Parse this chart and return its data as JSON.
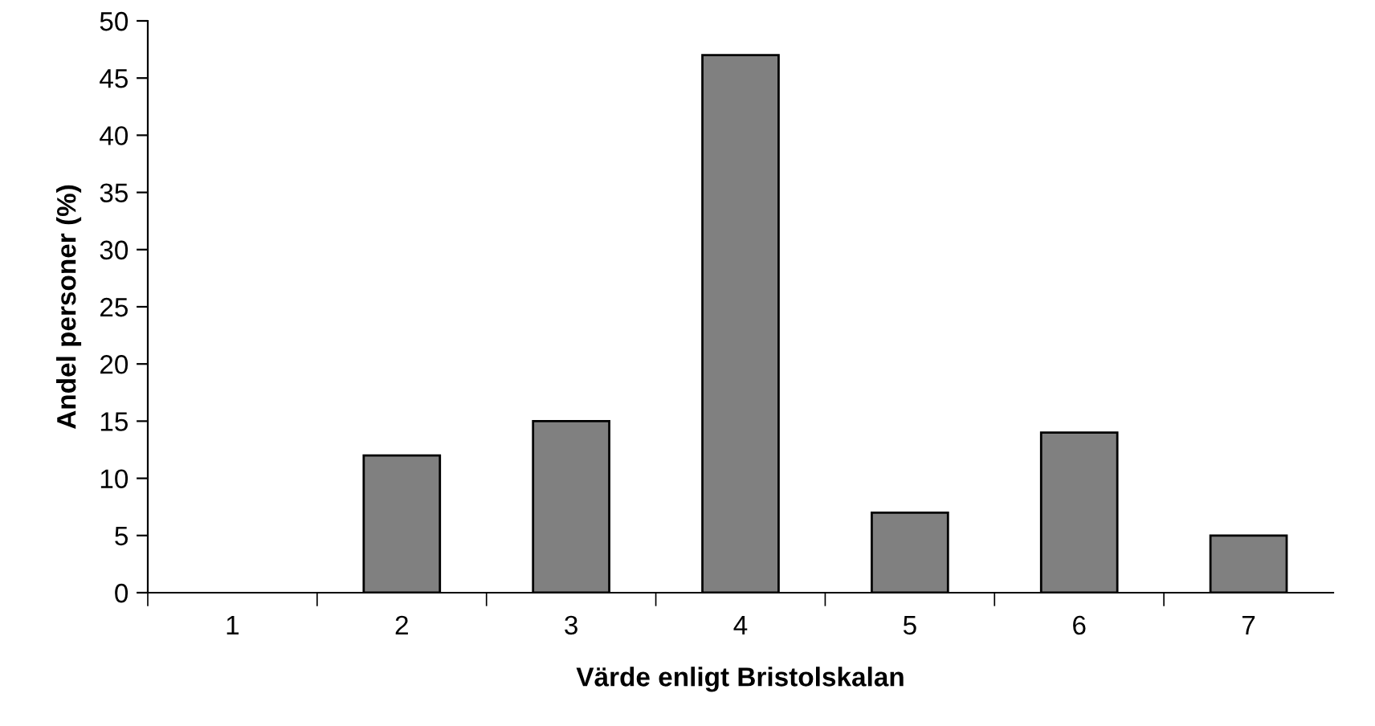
{
  "chart_data": {
    "type": "bar",
    "xlabel": "Värde enligt Bristolskalan",
    "ylabel": "Andel personer (%)",
    "categories": [
      "1",
      "2",
      "3",
      "4",
      "5",
      "6",
      "7"
    ],
    "values": [
      0,
      12,
      15,
      47,
      7,
      14,
      5
    ],
    "color": "#808080",
    "ylim": [
      0,
      50
    ],
    "yticks": [
      0,
      5,
      10,
      15,
      20,
      25,
      30,
      35,
      40,
      45,
      50
    ],
    "grid": false,
    "legend": false
  }
}
